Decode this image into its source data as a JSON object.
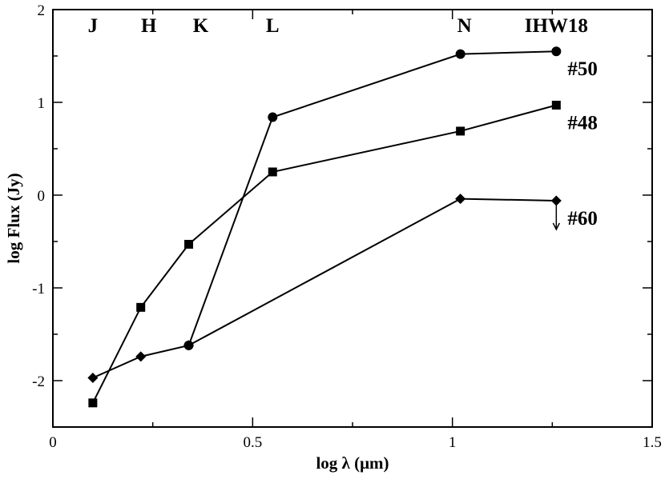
{
  "chart_data": {
    "type": "line",
    "xlabel": "log λ  (μm)",
    "ylabel": "log Flux (Jy)",
    "xlim": [
      0,
      1.5
    ],
    "ylim": [
      -2.5,
      2
    ],
    "xticks": [
      {
        "value": 0,
        "label": "0"
      },
      {
        "value": 0.5,
        "label": "0.5"
      },
      {
        "value": 1,
        "label": "1"
      },
      {
        "value": 1.5,
        "label": "1.5"
      }
    ],
    "yticks": [
      {
        "value": -2,
        "label": "-2"
      },
      {
        "value": -1,
        "label": "-1"
      },
      {
        "value": 0,
        "label": "0"
      },
      {
        "value": 1,
        "label": "1"
      },
      {
        "value": 2,
        "label": "2"
      }
    ],
    "band_labels": [
      {
        "text": "J",
        "x": 0.1
      },
      {
        "text": "H",
        "x": 0.24
      },
      {
        "text": "K",
        "x": 0.37
      },
      {
        "text": "L",
        "x": 0.55
      },
      {
        "text": "N",
        "x": 1.03
      },
      {
        "text": "IHW18",
        "x": 1.26
      }
    ],
    "series": [
      {
        "name": "#50",
        "marker": "circle",
        "points": [
          [
            0.34,
            -1.62
          ],
          [
            0.55,
            0.84
          ],
          [
            1.02,
            1.52
          ],
          [
            1.26,
            1.55
          ]
        ]
      },
      {
        "name": "#48",
        "marker": "square",
        "points": [
          [
            0.1,
            -2.24
          ],
          [
            0.22,
            -1.21
          ],
          [
            0.34,
            -0.53
          ],
          [
            0.55,
            0.25
          ],
          [
            1.02,
            0.69
          ],
          [
            1.26,
            0.97
          ]
        ]
      },
      {
        "name": "#60",
        "marker": "diamond",
        "points": [
          [
            0.1,
            -1.97
          ],
          [
            0.22,
            -1.74
          ],
          [
            0.34,
            -1.62
          ],
          [
            1.02,
            -0.04
          ],
          [
            1.26,
            -0.06
          ]
        ],
        "upper_limit_x": 1.26
      }
    ]
  }
}
